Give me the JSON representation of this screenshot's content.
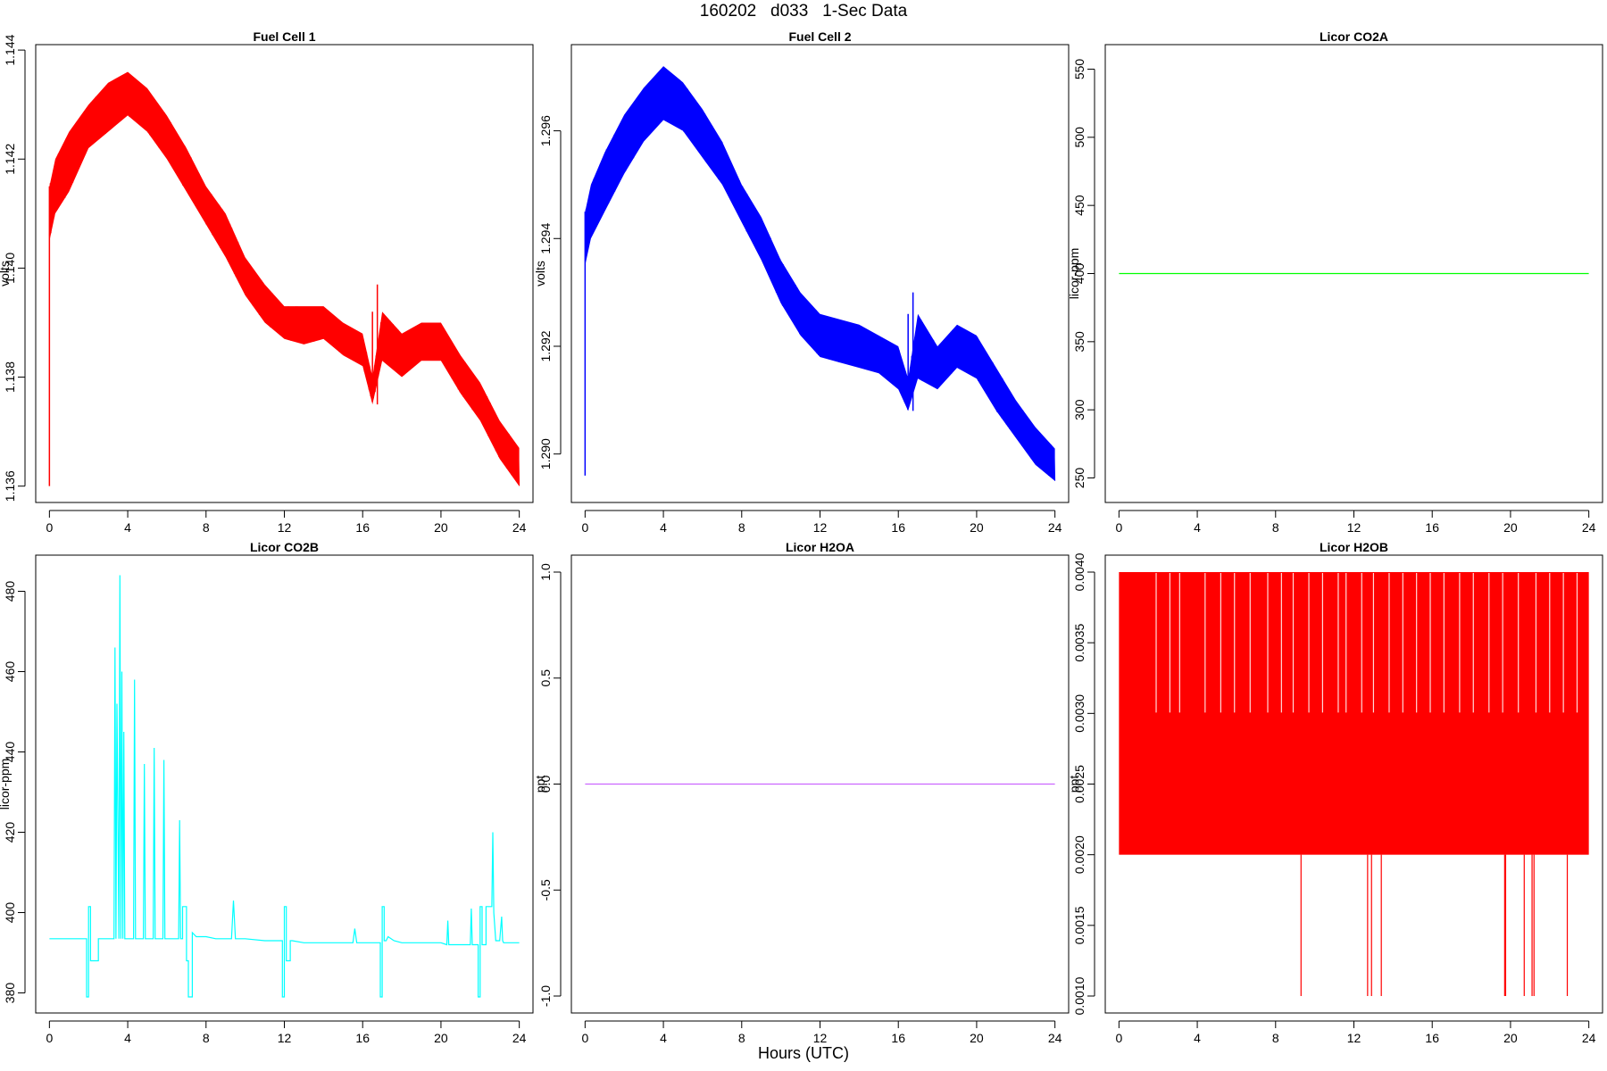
{
  "page": {
    "title": "160202   d033   1-Sec Data",
    "x_title": "Hours (UTC)"
  },
  "chart_data": [
    {
      "id": "fc1",
      "type": "line",
      "title": "Fuel Cell 1",
      "xlabel": "",
      "ylabel": "volts",
      "xlim": [
        -0.7,
        24.7
      ],
      "ylim": [
        1.1357,
        1.1441
      ],
      "xticks": [
        0,
        4,
        8,
        12,
        16,
        20,
        24
      ],
      "yticks": [
        1.136,
        1.138,
        1.14,
        1.142,
        1.144
      ],
      "ytick_labels": [
        "1.136",
        "1.138",
        "1.140",
        "1.142",
        "1.144"
      ],
      "color": "#ff0000",
      "grid": false,
      "band": {
        "x": [
          0,
          0.3,
          1,
          2,
          3,
          4,
          5,
          6,
          7,
          8,
          9,
          10,
          11,
          12,
          13,
          14,
          15,
          16,
          16.5,
          17,
          18,
          19,
          20,
          21,
          22,
          23,
          24
        ],
        "low": [
          1.1405,
          1.141,
          1.1414,
          1.1422,
          1.1425,
          1.1428,
          1.1425,
          1.142,
          1.1414,
          1.1408,
          1.1402,
          1.1395,
          1.139,
          1.1387,
          1.1386,
          1.1387,
          1.1384,
          1.1382,
          1.1375,
          1.1383,
          1.138,
          1.1383,
          1.1383,
          1.1377,
          1.1372,
          1.1365,
          1.136
        ],
        "high": [
          1.1415,
          1.142,
          1.1425,
          1.143,
          1.1434,
          1.1436,
          1.1433,
          1.1428,
          1.1422,
          1.1415,
          1.141,
          1.1402,
          1.1397,
          1.1393,
          1.1393,
          1.1393,
          1.139,
          1.1388,
          1.138,
          1.1392,
          1.1388,
          1.139,
          1.139,
          1.1384,
          1.1379,
          1.1372,
          1.1367
        ]
      },
      "segments": [
        [
          [
            0,
            1.1415
          ],
          [
            0,
            1.136
          ]
        ],
        [
          [
            16.5,
            1.1377
          ],
          [
            16.5,
            1.1392
          ]
        ],
        [
          [
            16.75,
            1.1375
          ],
          [
            16.75,
            1.1397
          ]
        ]
      ]
    },
    {
      "id": "fc2",
      "type": "line",
      "title": "Fuel Cell 2",
      "xlabel": "",
      "ylabel": "volts",
      "xlim": [
        -0.7,
        24.7
      ],
      "ylim": [
        1.2891,
        1.2976
      ],
      "xticks": [
        0,
        4,
        8,
        12,
        16,
        20,
        24
      ],
      "yticks": [
        1.29,
        1.292,
        1.294,
        1.296
      ],
      "ytick_labels": [
        "1.290",
        "1.292",
        "1.294",
        "1.296"
      ],
      "color": "#0000ff",
      "grid": false,
      "band": {
        "x": [
          0,
          0.3,
          1,
          2,
          3,
          4,
          5,
          6,
          7,
          8,
          9,
          10,
          11,
          12,
          13,
          14,
          15,
          16,
          16.5,
          17,
          18,
          19,
          20,
          21,
          22,
          23,
          24
        ],
        "low": [
          1.2935,
          1.294,
          1.2945,
          1.2952,
          1.2958,
          1.2962,
          1.296,
          1.2955,
          1.295,
          1.2943,
          1.2936,
          1.2928,
          1.2922,
          1.2918,
          1.2917,
          1.2916,
          1.2915,
          1.2912,
          1.2908,
          1.2914,
          1.2912,
          1.2916,
          1.2914,
          1.2908,
          1.2903,
          1.2898,
          1.2895
        ],
        "high": [
          1.2945,
          1.295,
          1.2956,
          1.2963,
          1.2968,
          1.2972,
          1.2969,
          1.2964,
          1.2958,
          1.295,
          1.2944,
          1.2936,
          1.293,
          1.2926,
          1.2925,
          1.2924,
          1.2922,
          1.292,
          1.2914,
          1.2926,
          1.292,
          1.2924,
          1.2922,
          1.2916,
          1.291,
          1.2905,
          1.2901
        ]
      },
      "segments": [
        [
          [
            0,
            1.2945
          ],
          [
            0,
            1.2896
          ]
        ],
        [
          [
            16.5,
            1.291
          ],
          [
            16.5,
            1.2926
          ]
        ],
        [
          [
            16.75,
            1.2908
          ],
          [
            16.75,
            1.293
          ]
        ]
      ]
    },
    {
      "id": "co2a",
      "type": "line",
      "title": "Licor CO2A",
      "xlabel": "",
      "ylabel": "licor-ppm",
      "xlim": [
        -0.7,
        24.7
      ],
      "ylim": [
        232,
        568
      ],
      "xticks": [
        0,
        4,
        8,
        12,
        16,
        20,
        24
      ],
      "yticks": [
        250,
        300,
        350,
        400,
        450,
        500,
        550
      ],
      "ytick_labels": [
        "250",
        "300",
        "350",
        "400",
        "450",
        "500",
        "550"
      ],
      "color": "#00ff00",
      "grid": false,
      "series": [
        {
          "x": [
            0,
            24
          ],
          "values": [
            400,
            400
          ]
        }
      ]
    },
    {
      "id": "co2b",
      "type": "line",
      "title": "Licor CO2B",
      "xlabel": "",
      "ylabel": "licor-ppm",
      "xlim": [
        -0.7,
        24.7
      ],
      "ylim": [
        375,
        489
      ],
      "xticks": [
        0,
        4,
        8,
        12,
        16,
        20,
        24
      ],
      "yticks": [
        380,
        400,
        420,
        440,
        460,
        480
      ],
      "ytick_labels": [
        "380",
        "400",
        "420",
        "440",
        "460",
        "480"
      ],
      "color": "#00ffff",
      "grid": false,
      "series": [
        {
          "x": [
            0,
            1.9,
            1.9,
            2.0,
            2.0,
            2.1,
            2.1,
            2.3,
            2.3,
            2.5,
            2.5,
            2.6,
            2.6,
            3.3,
            3.35,
            3.4,
            3.45,
            3.55,
            3.6,
            3.65,
            3.7,
            3.75,
            3.8,
            3.85,
            3.9,
            4.0,
            4.2,
            4.3,
            4.35,
            4.4,
            4.7,
            4.8,
            4.85,
            4.9,
            5.2,
            5.3,
            5.35,
            5.4,
            5.7,
            5.8,
            5.85,
            5.9,
            6.5,
            6.6,
            6.65,
            6.7,
            6.8,
            6.8,
            7.0,
            7.0,
            7.1,
            7.1,
            7.3,
            7.3,
            7.5,
            8.0,
            8.5,
            9.0,
            9.3,
            9.4,
            9.5,
            10.0,
            11.0,
            11.9,
            11.9,
            12.0,
            12.0,
            12.1,
            12.1,
            12.3,
            12.3,
            12.4,
            13.0,
            14.0,
            15.0,
            15.5,
            15.6,
            15.7,
            16.0,
            16.9,
            16.9,
            17.0,
            17.0,
            17.1,
            17.1,
            17.2,
            17.3,
            17.6,
            18.0,
            19.0,
            20.0,
            20.3,
            20.35,
            20.4,
            21.0,
            21.5,
            21.55,
            21.6,
            21.9,
            21.9,
            22.0,
            22.0,
            22.1,
            22.1,
            22.3,
            22.3,
            22.5,
            22.6,
            22.65,
            22.7,
            22.8,
            23.0,
            23.1,
            23.15,
            23.2,
            24.0
          ],
          "values": [
            393.5,
            393.5,
            379,
            379,
            401.5,
            401.5,
            388,
            388,
            388,
            388,
            393.5,
            393.5,
            393.5,
            393.5,
            466,
            393.5,
            452,
            393.5,
            484,
            393.5,
            460,
            393.5,
            445,
            393.5,
            393.5,
            393.5,
            393.5,
            393.5,
            458,
            393.5,
            393.5,
            393.5,
            437,
            393.5,
            393.5,
            393.5,
            441,
            393.5,
            393.5,
            393.5,
            438,
            393.5,
            393.5,
            393.5,
            423,
            393.5,
            393.5,
            401.5,
            401.5,
            388,
            388,
            379,
            379,
            395,
            394,
            394,
            393.5,
            393.5,
            393.5,
            403,
            393.5,
            393.5,
            393,
            393,
            379,
            379,
            401.5,
            401.5,
            388,
            388,
            393,
            393,
            392.5,
            392.5,
            392.5,
            392.5,
            396,
            392.5,
            392.5,
            392.5,
            379,
            379,
            401.5,
            401.5,
            393,
            393,
            394,
            393,
            392.5,
            392.5,
            392.5,
            392,
            398,
            392,
            392,
            392,
            401,
            392,
            392,
            379,
            379,
            401.5,
            401.5,
            392,
            392,
            401.5,
            401.5,
            401.5,
            420,
            400,
            393,
            393,
            399,
            393,
            392.5,
            392.5
          ]
        }
      ]
    },
    {
      "id": "h2oa",
      "type": "line",
      "title": "Licor H2OA",
      "xlabel": "",
      "ylabel": "ppt",
      "xlim": [
        -0.7,
        24.7
      ],
      "ylim": [
        -1.08,
        1.08
      ],
      "xticks": [
        0,
        4,
        8,
        12,
        16,
        20,
        24
      ],
      "yticks": [
        -1,
        -0.5,
        0,
        0.5,
        1
      ],
      "ytick_labels": [
        "-1.0",
        "-0.5",
        "0.0",
        "0.5",
        "1.0"
      ],
      "color": "#cc66ff",
      "grid": false,
      "series": [
        {
          "x": [
            0,
            24
          ],
          "values": [
            0,
            0
          ]
        }
      ]
    },
    {
      "id": "h2ob",
      "type": "line",
      "title": "Licor H2OB",
      "xlabel": "",
      "ylabel": "ppt",
      "xlim": [
        -0.7,
        24.7
      ],
      "ylim": [
        0.00088,
        0.00412
      ],
      "xticks": [
        0,
        4,
        8,
        12,
        16,
        20,
        24
      ],
      "yticks": [
        0.001,
        0.0015,
        0.002,
        0.0025,
        0.003,
        0.0035,
        0.004
      ],
      "ytick_labels": [
        "0.0010",
        "0.0015",
        "0.0020",
        "0.0025",
        "0.0030",
        "0.0035",
        "0.0040"
      ],
      "color": "#ff0000",
      "grid": false,
      "fill_range": {
        "x": [
          0,
          24
        ],
        "low": 0.002,
        "high": 0.004
      },
      "drops": {
        "x": [
          9.3,
          12.7,
          12.9,
          13.4,
          19.7,
          19.75,
          20.7,
          21.1,
          21.2,
          22.9
        ],
        "low": 0.001,
        "high": 0.002
      },
      "gaps": {
        "x": [
          1.9,
          2.6,
          3.1,
          4.4,
          5.2,
          5.9,
          6.7,
          7.6,
          8.3,
          8.9,
          9.7,
          10.4,
          11.2,
          11.6,
          12.4,
          13.0,
          13.8,
          14.5,
          15.2,
          15.9,
          16.6,
          17.4,
          18.1,
          18.9,
          19.6,
          20.4,
          21.3,
          22.0,
          22.7,
          23.4
        ],
        "low": 0.003,
        "high": 0.004
      }
    }
  ]
}
